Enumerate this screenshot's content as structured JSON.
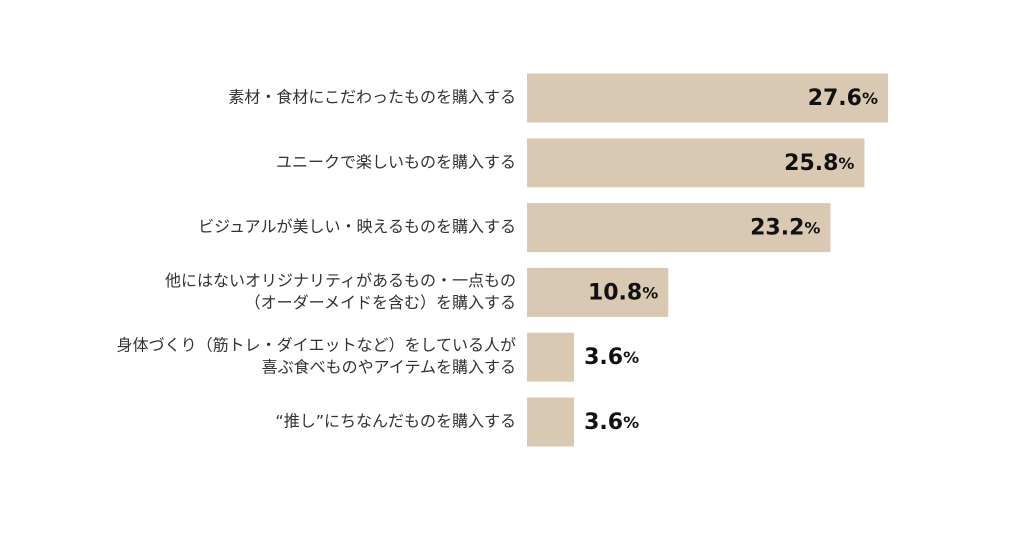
{
  "chart_data": {
    "type": "bar",
    "orientation": "horizontal",
    "categories": [
      [
        "素材・食材にこだわったものを購入する"
      ],
      [
        "ユニークで楽しいものを購入する"
      ],
      [
        "ビジュアルが美しい・映えるものを購入する"
      ],
      [
        "他にはないオリジナリティがあるもの・一点もの",
        "（オーダーメイドを含む）を購入する"
      ],
      [
        "身体づくり（筋トレ・ダイエットなど）をしている人が",
        "喜ぶ食べものやアイテムを購入する"
      ],
      [
        "“推し”にちなんだものを購入する"
      ]
    ],
    "values": [
      27.6,
      25.8,
      23.2,
      10.8,
      3.6,
      3.6
    ],
    "value_labels": [
      "27.6",
      "25.8",
      "23.2",
      "10.8",
      "3.6",
      "3.6"
    ],
    "value_unit": "%",
    "xlim": [
      0,
      30
    ],
    "grid": false,
    "bar_color": "#d9c9b3",
    "label_color": "#333333",
    "value_color": "#111111"
  }
}
